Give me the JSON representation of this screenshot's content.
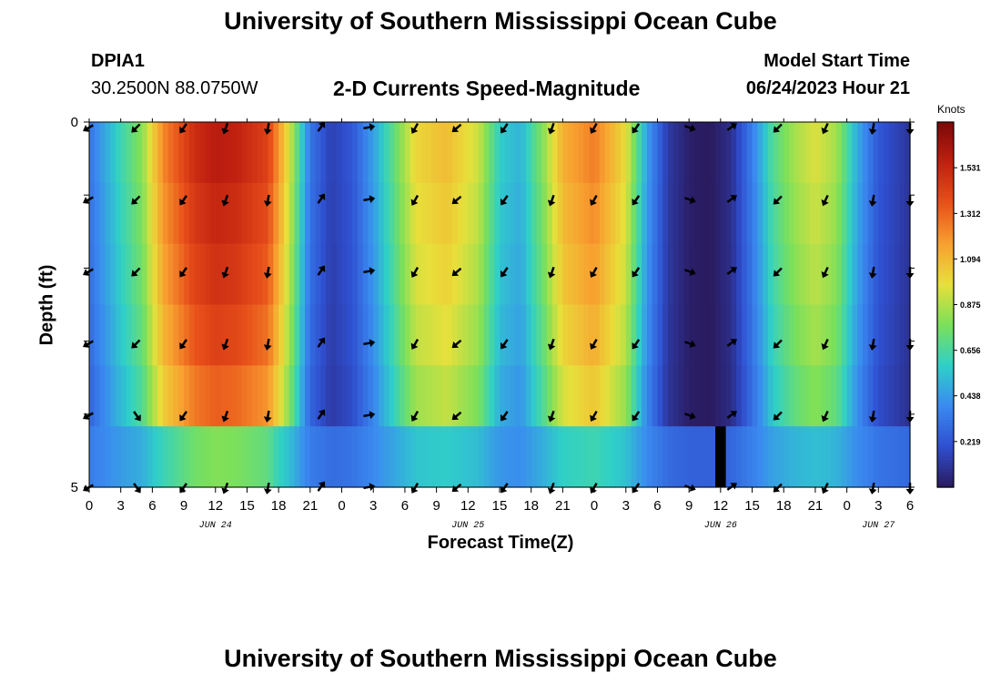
{
  "header": {
    "title": "University of Southern Mississippi Ocean Cube",
    "station": "DPIA1",
    "coords": "30.2500N  88.0750W",
    "subtitle": "2-D Currents Speed-Magnitude",
    "model_label": "Model Start Time",
    "model_time": "06/24/2023 Hour 21"
  },
  "footer": {
    "title": "University of Southern Mississippi Ocean Cube"
  },
  "colorbar": {
    "units": "Knots",
    "ticks": [
      "1.531",
      "1.312",
      "1.094",
      "0.875",
      "0.656",
      "0.438",
      "0.219"
    ],
    "tick_values": [
      1.531,
      1.312,
      1.094,
      0.875,
      0.656,
      0.438,
      0.219
    ],
    "range": [
      0,
      1.75
    ]
  },
  "chart_data": {
    "type": "heatmap",
    "title": "2-D Currents Speed-Magnitude",
    "xlabel": "Forecast Time(Z)",
    "ylabel": "Depth (ft)",
    "y_tick_labels": [
      "0",
      "5"
    ],
    "ylim": [
      0,
      5
    ],
    "xlim_hours": [
      0,
      78
    ],
    "x_tick_labels": [
      "0",
      "3",
      "6",
      "9",
      "12",
      "15",
      "18",
      "21",
      "0",
      "3",
      "6",
      "9",
      "12",
      "15",
      "18",
      "21",
      "0",
      "3",
      "6",
      "9",
      "12",
      "15",
      "18",
      "21",
      "0",
      "3",
      "6"
    ],
    "date_labels": [
      {
        "label": "JUN 24",
        "hour": 12
      },
      {
        "label": "JUN 25",
        "hour": 36
      },
      {
        "label": "JUN 26",
        "hour": 60
      },
      {
        "label": "JUN 27",
        "hour": 75
      }
    ],
    "depth_rows": 5,
    "color_scale": [
      "#2a1a5e",
      "#2f4fd0",
      "#3a8af0",
      "#2fd0c8",
      "#7be05a",
      "#e8e03a",
      "#f8a030",
      "#e8501a",
      "#c02010",
      "#7a0808"
    ],
    "speed_profile": [
      {
        "hour": 0,
        "speed": 0.32
      },
      {
        "hour": 3,
        "speed": 0.62
      },
      {
        "hour": 5,
        "speed": 0.8
      },
      {
        "hour": 7,
        "speed": 1.22
      },
      {
        "hour": 10,
        "speed": 1.5
      },
      {
        "hour": 12,
        "speed": 1.58
      },
      {
        "hour": 14,
        "speed": 1.55
      },
      {
        "hour": 17,
        "speed": 1.42
      },
      {
        "hour": 19,
        "speed": 0.95
      },
      {
        "hour": 21,
        "speed": 0.32
      },
      {
        "hour": 23,
        "speed": 0.14
      },
      {
        "hour": 25,
        "speed": 0.22
      },
      {
        "hour": 27,
        "speed": 0.45
      },
      {
        "hour": 29,
        "speed": 0.72
      },
      {
        "hour": 31,
        "speed": 1.0
      },
      {
        "hour": 34,
        "speed": 1.08
      },
      {
        "hour": 37,
        "speed": 0.92
      },
      {
        "hour": 39,
        "speed": 0.58
      },
      {
        "hour": 41,
        "speed": 0.5
      },
      {
        "hour": 43,
        "speed": 0.78
      },
      {
        "hour": 45,
        "speed": 1.12
      },
      {
        "hour": 48,
        "speed": 1.25
      },
      {
        "hour": 51,
        "speed": 0.98
      },
      {
        "hour": 53,
        "speed": 0.45
      },
      {
        "hour": 55,
        "speed": 0.12
      },
      {
        "hour": 57,
        "speed": 0.02
      },
      {
        "hour": 59,
        "speed": 0.0
      },
      {
        "hour": 61,
        "speed": 0.08
      },
      {
        "hour": 63,
        "speed": 0.35
      },
      {
        "hour": 65,
        "speed": 0.68
      },
      {
        "hour": 67,
        "speed": 0.85
      },
      {
        "hour": 69,
        "speed": 0.95
      },
      {
        "hour": 71,
        "speed": 0.85
      },
      {
        "hour": 73,
        "speed": 0.48
      },
      {
        "hour": 75,
        "speed": 0.22
      },
      {
        "hour": 78,
        "speed": 0.1
      }
    ],
    "depth_factors": [
      1.0,
      0.97,
      0.94,
      0.9,
      0.84,
      0.5
    ],
    "arrows": {
      "hours": [
        0,
        4.5,
        9,
        13,
        17,
        22,
        26.5,
        31,
        35,
        39.5,
        44,
        48,
        52,
        57,
        61,
        65.5,
        70,
        74.5,
        78
      ],
      "angles_deg": [
        150,
        135,
        125,
        110,
        100,
        -55,
        -10,
        120,
        140,
        125,
        110,
        120,
        125,
        20,
        -35,
        135,
        115,
        100,
        90
      ]
    },
    "data_gap_hours": [
      59.5,
      60.5
    ]
  }
}
